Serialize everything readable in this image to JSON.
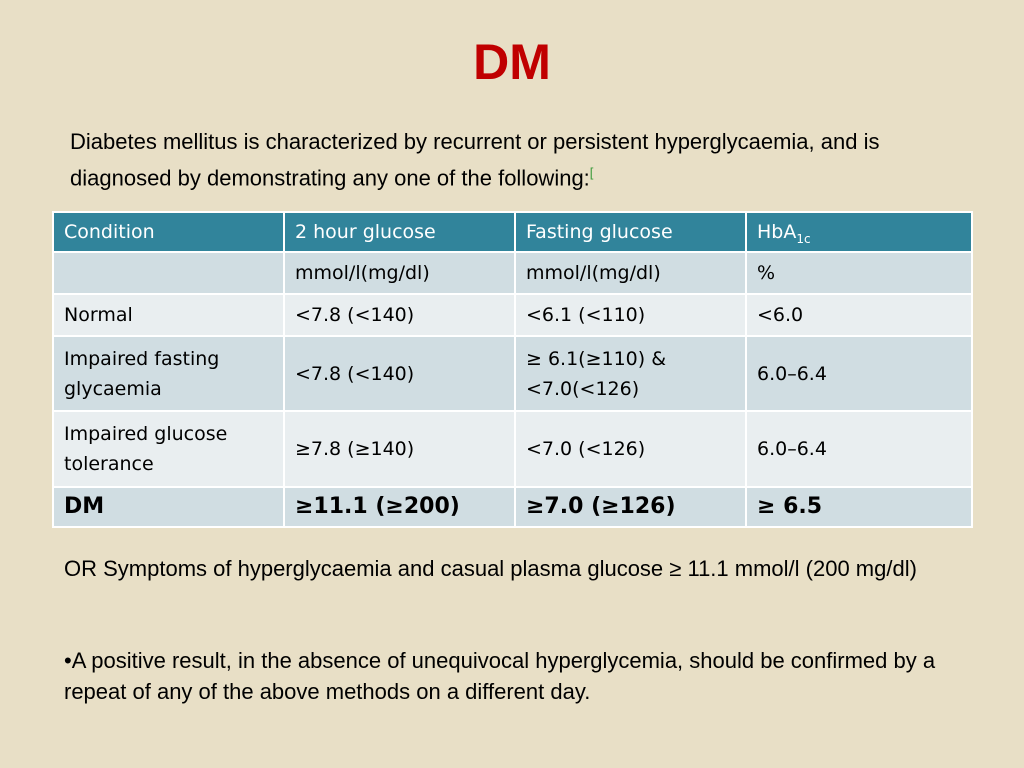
{
  "slide": {
    "title": "DM",
    "intro": "Diabetes mellitus is characterized by recurrent or persistent hyperglycaemia, and is diagnosed by demonstrating any one of the following:",
    "intro_ref": "[",
    "note": "OR Symptoms of hyperglycaemia and casual plasma glucose ≥ 11.1 mmol/l (200 mg/dl)",
    "bullet": "•A positive result, in the absence of unequivocal hyperglycemia, should be confirmed by a repeat of any of the above methods on a different day."
  },
  "table": {
    "headers": [
      "Condition",
      "2 hour glucose",
      "Fasting glucose",
      "HbA"
    ],
    "header_sub": "1c",
    "rows": [
      [
        "",
        "mmol/l(mg/dl)",
        "mmol/l(mg/dl)",
        "%"
      ],
      [
        "Normal",
        "<7.8 (<140)",
        "<6.1 (<110)",
        "<6.0"
      ],
      [
        "Impaired fasting glycaemia",
        "<7.8 (<140)",
        "≥ 6.1(≥110) & <7.0(<126)",
        "6.0–6.4"
      ],
      [
        "Impaired glucose tolerance",
        "≥7.8 (≥140)",
        "<7.0 (<126)",
        "6.0–6.4"
      ],
      [
        "DM",
        "≥11.1 (≥200)",
        "≥7.0 (≥126)",
        "≥ 6.5"
      ]
    ]
  },
  "colors": {
    "background": "#e8dfc6",
    "title": "#c00000",
    "header": "#31849b",
    "row_dark": "#d0dde2",
    "row_light": "#e9eef0"
  }
}
